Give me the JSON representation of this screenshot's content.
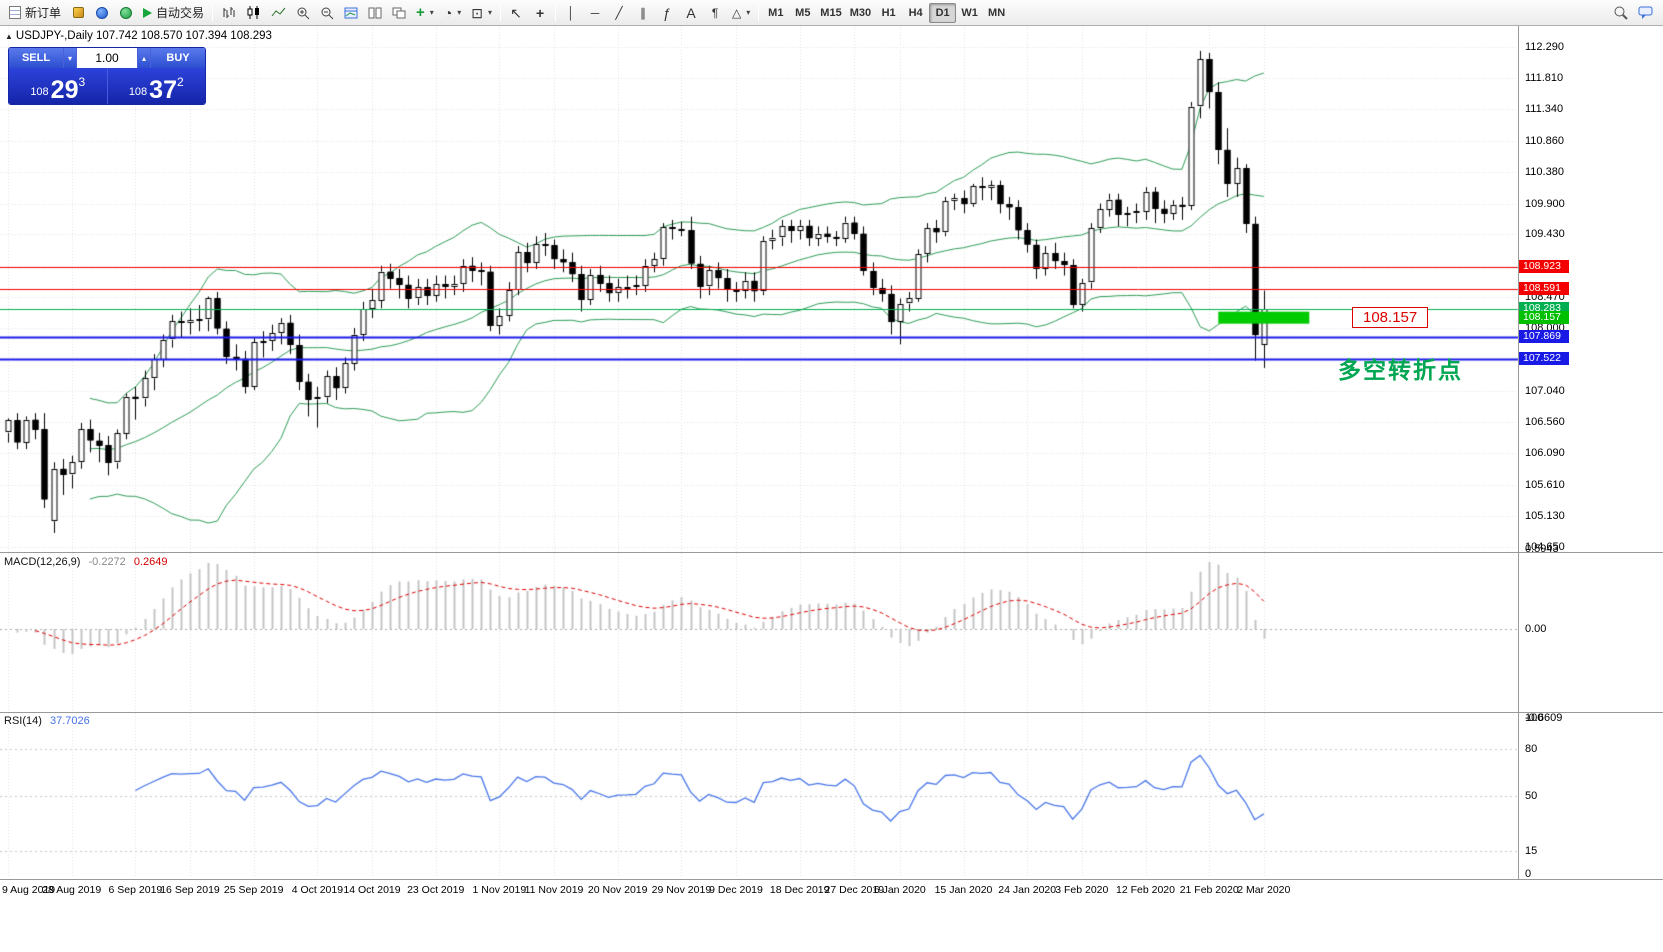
{
  "toolbar": {
    "new_order": "新订单",
    "auto_trading": "自动交易",
    "timeframes": [
      "M1",
      "M5",
      "M15",
      "M30",
      "H1",
      "H4",
      "D1",
      "W1",
      "MN"
    ],
    "active_timeframe": "D1"
  },
  "icons": {
    "caret": "▾",
    "caret_up": "▴",
    "play": "▶",
    "plus": "+",
    "clock": "◔",
    "template": "⊡",
    "cursor": "↖",
    "crosshair": "+",
    "vline": "│",
    "hline": "─",
    "trendline": "╱",
    "channel": "∥",
    "fibo": "ƒ",
    "text": "A",
    "label": "¶",
    "shapes": "△",
    "symbol_arrow": "▲"
  },
  "trade_panel": {
    "sell_label": "SELL",
    "buy_label": "BUY",
    "volume": "1.00",
    "sell_price_small": "108",
    "sell_price_big": "29",
    "sell_price_sup": "3",
    "buy_price_small": "108",
    "buy_price_big": "37",
    "buy_price_sup": "2"
  },
  "chart": {
    "symbol_title": "USDJPY-,Daily  107.742 108.570 107.394 108.293",
    "annotation": "多空转折点",
    "level_label": "108.157",
    "price_scale_labels": [
      "112.290",
      "111.810",
      "111.340",
      "110.860",
      "110.380",
      "109.900",
      "109.430",
      "108.950",
      "108.470",
      "108.000",
      "107.520",
      "107.040",
      "106.560",
      "106.090",
      "105.610",
      "105.130",
      "104.650"
    ],
    "price_tags": [
      {
        "text": "108.923",
        "color": "#f50000"
      },
      {
        "text": "108.591",
        "color": "#f50000"
      },
      {
        "text": "108.283",
        "color": "#00b050"
      },
      {
        "text": "108.157",
        "color": "#00c000"
      },
      {
        "text": "107.869",
        "color": "#1a1ae6"
      },
      {
        "text": "107.522",
        "color": "#1a1ae6"
      }
    ],
    "hlines": [
      {
        "price": 108.923,
        "color": "#f50000",
        "width": 1
      },
      {
        "price": 108.591,
        "color": "#f50000",
        "width": 1
      },
      {
        "price": 108.283,
        "color": "#00b050",
        "width": 1
      },
      {
        "price": 107.869,
        "color": "#1a1ae6",
        "width": 2
      },
      {
        "price": 107.522,
        "color": "#1a1ae6",
        "width": 2
      }
    ],
    "highlight_box": {
      "price": 108.157,
      "bar_from": 133,
      "bar_to": 143,
      "color": "#00ca00"
    }
  },
  "macd_panel": {
    "label": "MACD(12,26,9)",
    "main_value": "-0.2272",
    "signal_value": "0.2649",
    "scale_labels": [
      "0.5943",
      "0.00",
      "-0.6609"
    ]
  },
  "rsi_panel": {
    "label": "RSI(14)",
    "value": "37.7026",
    "scale_labels": [
      "100",
      "80",
      "50",
      "15",
      "0"
    ],
    "levels": [
      80,
      50,
      15
    ]
  },
  "date_axis": {
    "ticks": [
      {
        "label": "9 Aug 2019",
        "bar": 0
      },
      {
        "label": "28 Aug 2019",
        "bar": 7
      },
      {
        "label": "6 Sep 2019",
        "bar": 14
      },
      {
        "label": "16 Sep 2019",
        "bar": 20
      },
      {
        "label": "25 Sep 2019",
        "bar": 27
      },
      {
        "label": "4 Oct 2019",
        "bar": 34
      },
      {
        "label": "14 Oct 2019",
        "bar": 40
      },
      {
        "label": "23 Oct 2019",
        "bar": 47
      },
      {
        "label": "1 Nov 2019",
        "bar": 54
      },
      {
        "label": "11 Nov 2019",
        "bar": 60
      },
      {
        "label": "20 Nov 2019",
        "bar": 67
      },
      {
        "label": "29 Nov 2019",
        "bar": 74
      },
      {
        "label": "9 Dec 2019",
        "bar": 80
      },
      {
        "label": "18 Dec 2019",
        "bar": 87
      },
      {
        "label": "27 Dec 2019",
        "bar": 93
      },
      {
        "label": "6 Jan 2020",
        "bar": 98
      },
      {
        "label": "15 Jan 2020",
        "bar": 105
      },
      {
        "label": "24 Jan 2020",
        "bar": 112
      },
      {
        "label": "3 Feb 2020",
        "bar": 118
      },
      {
        "label": "12 Feb 2020",
        "bar": 125
      },
      {
        "label": "21 Feb 2020",
        "bar": 132
      },
      {
        "label": "2 Mar 2020",
        "bar": 138
      }
    ]
  },
  "chart_data": {
    "type": "candlestick",
    "symbol": "USDJPY-",
    "timeframe": "Daily",
    "y_range": [
      104.58,
      112.61
    ],
    "candle_up": "#ffffff",
    "candle_down": "#000000",
    "candle_outline": "#000000",
    "indicators": {
      "bollinger": {
        "period": 20,
        "deviation": 2,
        "color": "#2e9b57"
      },
      "macd": {
        "fast": 12,
        "slow": 26,
        "signal": 9,
        "bar_color": "#c4c4c4",
        "signal_color": "#dd0000"
      },
      "rsi": {
        "period": 14,
        "color": "#4976e8"
      }
    },
    "ohlc": [
      [
        106.4,
        106.62,
        106.25,
        106.59
      ],
      [
        106.59,
        106.7,
        106.15,
        106.25
      ],
      [
        106.25,
        106.65,
        106.15,
        106.6
      ],
      [
        106.6,
        106.7,
        106.3,
        106.45
      ],
      [
        106.45,
        106.7,
        105.25,
        105.38
      ],
      [
        105.05,
        105.95,
        104.87,
        105.85
      ],
      [
        105.85,
        106.0,
        105.45,
        105.76
      ],
      [
        105.76,
        106.05,
        105.55,
        105.95
      ],
      [
        105.95,
        106.55,
        105.85,
        106.45
      ],
      [
        106.45,
        106.6,
        106.1,
        106.28
      ],
      [
        106.28,
        106.4,
        105.95,
        106.21
      ],
      [
        106.21,
        106.35,
        105.75,
        105.94
      ],
      [
        105.94,
        106.45,
        105.85,
        106.39
      ],
      [
        106.39,
        107.0,
        106.3,
        106.95
      ],
      [
        106.95,
        107.1,
        106.6,
        106.92
      ],
      [
        106.92,
        107.35,
        106.8,
        107.23
      ],
      [
        107.23,
        107.6,
        107.05,
        107.52
      ],
      [
        107.52,
        107.9,
        107.4,
        107.82
      ],
      [
        107.82,
        108.2,
        107.7,
        108.1
      ],
      [
        108.1,
        108.25,
        107.85,
        108.08
      ],
      [
        108.08,
        108.3,
        107.9,
        108.12
      ],
      [
        108.12,
        108.35,
        107.95,
        108.13
      ],
      [
        108.13,
        108.48,
        107.95,
        108.45
      ],
      [
        108.45,
        108.55,
        107.9,
        107.99
      ],
      [
        107.99,
        108.1,
        107.45,
        107.56
      ],
      [
        107.56,
        107.75,
        107.35,
        107.53
      ],
      [
        107.53,
        107.65,
        107.0,
        107.1
      ],
      [
        107.1,
        107.85,
        107.05,
        107.78
      ],
      [
        107.78,
        107.95,
        107.55,
        107.8
      ],
      [
        107.8,
        108.05,
        107.65,
        107.92
      ],
      [
        107.92,
        108.15,
        107.75,
        108.08
      ],
      [
        108.08,
        108.2,
        107.6,
        107.74
      ],
      [
        107.74,
        107.9,
        107.05,
        107.18
      ],
      [
        107.18,
        107.3,
        106.65,
        106.91
      ],
      [
        106.91,
        107.1,
        106.48,
        106.94
      ],
      [
        106.94,
        107.35,
        106.85,
        107.26
      ],
      [
        107.26,
        107.4,
        106.9,
        107.08
      ],
      [
        107.08,
        107.55,
        107.0,
        107.46
      ],
      [
        107.46,
        108.0,
        107.35,
        107.9
      ],
      [
        107.9,
        108.4,
        107.8,
        108.29
      ],
      [
        108.29,
        108.6,
        108.15,
        108.42
      ],
      [
        108.42,
        108.95,
        108.3,
        108.86
      ],
      [
        108.86,
        108.98,
        108.6,
        108.76
      ],
      [
        108.76,
        108.9,
        108.45,
        108.66
      ],
      [
        108.66,
        108.8,
        108.3,
        108.45
      ],
      [
        108.45,
        108.75,
        108.35,
        108.62
      ],
      [
        108.62,
        108.75,
        108.35,
        108.49
      ],
      [
        108.49,
        108.8,
        108.4,
        108.67
      ],
      [
        108.67,
        108.8,
        108.45,
        108.63
      ],
      [
        108.63,
        108.8,
        108.5,
        108.67
      ],
      [
        108.67,
        109.05,
        108.55,
        108.95
      ],
      [
        108.95,
        109.08,
        108.7,
        108.88
      ],
      [
        108.88,
        109.0,
        108.65,
        108.86
      ],
      [
        108.86,
        108.95,
        107.95,
        108.03
      ],
      [
        108.03,
        108.3,
        107.9,
        108.18
      ],
      [
        108.18,
        108.7,
        108.1,
        108.58
      ],
      [
        108.58,
        109.25,
        108.5,
        109.16
      ],
      [
        109.16,
        109.3,
        108.85,
        108.99
      ],
      [
        108.99,
        109.4,
        108.9,
        109.28
      ],
      [
        109.28,
        109.45,
        109.1,
        109.26
      ],
      [
        109.26,
        109.35,
        108.9,
        109.05
      ],
      [
        109.05,
        109.2,
        108.85,
        109.0
      ],
      [
        109.0,
        109.15,
        108.7,
        108.82
      ],
      [
        108.82,
        108.95,
        108.25,
        108.43
      ],
      [
        108.43,
        108.9,
        108.35,
        108.81
      ],
      [
        108.81,
        108.95,
        108.55,
        108.68
      ],
      [
        108.68,
        108.8,
        108.4,
        108.53
      ],
      [
        108.53,
        108.75,
        108.4,
        108.62
      ],
      [
        108.62,
        108.8,
        108.45,
        108.63
      ],
      [
        108.63,
        108.8,
        108.5,
        108.65
      ],
      [
        108.65,
        109.05,
        108.55,
        108.95
      ],
      [
        108.95,
        109.15,
        108.85,
        109.05
      ],
      [
        109.05,
        109.6,
        108.95,
        109.54
      ],
      [
        109.54,
        109.65,
        109.35,
        109.51
      ],
      [
        109.51,
        109.62,
        109.4,
        109.49
      ],
      [
        109.49,
        109.7,
        108.9,
        108.98
      ],
      [
        108.98,
        109.1,
        108.45,
        108.63
      ],
      [
        108.63,
        108.95,
        108.5,
        108.88
      ],
      [
        108.88,
        109.0,
        108.6,
        108.76
      ],
      [
        108.76,
        108.9,
        108.4,
        108.58
      ],
      [
        108.58,
        108.7,
        108.4,
        108.57
      ],
      [
        108.57,
        108.85,
        108.45,
        108.72
      ],
      [
        108.72,
        108.85,
        108.4,
        108.56
      ],
      [
        108.56,
        109.4,
        108.5,
        109.33
      ],
      [
        109.33,
        109.5,
        109.2,
        109.38
      ],
      [
        109.38,
        109.65,
        109.25,
        109.55
      ],
      [
        109.55,
        109.65,
        109.3,
        109.48
      ],
      [
        109.48,
        109.65,
        109.35,
        109.56
      ],
      [
        109.56,
        109.65,
        109.25,
        109.37
      ],
      [
        109.37,
        109.55,
        109.25,
        109.44
      ],
      [
        109.44,
        109.55,
        109.3,
        109.39
      ],
      [
        109.39,
        109.48,
        109.25,
        109.37
      ],
      [
        109.37,
        109.7,
        109.3,
        109.61
      ],
      [
        109.61,
        109.7,
        109.35,
        109.44
      ],
      [
        109.44,
        109.55,
        108.8,
        108.87
      ],
      [
        108.87,
        109.0,
        108.5,
        108.61
      ],
      [
        108.61,
        108.75,
        108.4,
        108.52
      ],
      [
        108.52,
        108.65,
        107.9,
        108.09
      ],
      [
        108.09,
        108.45,
        107.75,
        108.37
      ],
      [
        108.37,
        108.55,
        108.25,
        108.45
      ],
      [
        108.45,
        109.2,
        108.4,
        109.13
      ],
      [
        109.13,
        109.6,
        109.0,
        109.52
      ],
      [
        109.52,
        109.65,
        109.3,
        109.46
      ],
      [
        109.46,
        110.0,
        109.4,
        109.94
      ],
      [
        109.94,
        110.05,
        109.8,
        109.98
      ],
      [
        109.98,
        110.1,
        109.75,
        109.89
      ],
      [
        109.89,
        110.2,
        109.85,
        110.16
      ],
      [
        110.16,
        110.3,
        109.95,
        110.14
      ],
      [
        110.14,
        110.25,
        109.95,
        110.18
      ],
      [
        110.18,
        110.25,
        109.75,
        109.89
      ],
      [
        109.89,
        110.0,
        109.65,
        109.84
      ],
      [
        109.84,
        109.95,
        109.35,
        109.49
      ],
      [
        109.49,
        109.6,
        109.15,
        109.27
      ],
      [
        109.27,
        109.35,
        108.75,
        108.9
      ],
      [
        108.9,
        109.25,
        108.8,
        109.14
      ],
      [
        109.14,
        109.3,
        108.9,
        109.02
      ],
      [
        109.02,
        109.15,
        108.8,
        108.96
      ],
      [
        108.96,
        109.05,
        108.3,
        108.35
      ],
      [
        108.35,
        108.75,
        108.25,
        108.69
      ],
      [
        108.69,
        109.6,
        108.6,
        109.52
      ],
      [
        109.52,
        109.9,
        109.45,
        109.81
      ],
      [
        109.81,
        110.05,
        109.7,
        109.96
      ],
      [
        109.96,
        110.05,
        109.55,
        109.73
      ],
      [
        109.73,
        109.85,
        109.55,
        109.75
      ],
      [
        109.75,
        109.9,
        109.6,
        109.78
      ],
      [
        109.78,
        110.15,
        109.65,
        110.08
      ],
      [
        110.08,
        110.15,
        109.6,
        109.82
      ],
      [
        109.82,
        109.95,
        109.6,
        109.75
      ],
      [
        109.75,
        109.95,
        109.65,
        109.88
      ],
      [
        109.88,
        110.0,
        109.65,
        109.87
      ],
      [
        109.87,
        111.45,
        109.8,
        111.38
      ],
      [
        111.38,
        112.23,
        111.2,
        112.1
      ],
      [
        112.1,
        112.2,
        111.35,
        111.6
      ],
      [
        111.6,
        111.75,
        110.5,
        110.72
      ],
      [
        110.72,
        111.05,
        110.0,
        110.2
      ],
      [
        110.2,
        110.6,
        110.0,
        110.44
      ],
      [
        110.44,
        110.5,
        109.45,
        109.59
      ],
      [
        109.59,
        109.7,
        107.5,
        107.89
      ],
      [
        107.74,
        108.57,
        107.39,
        108.29
      ]
    ]
  }
}
